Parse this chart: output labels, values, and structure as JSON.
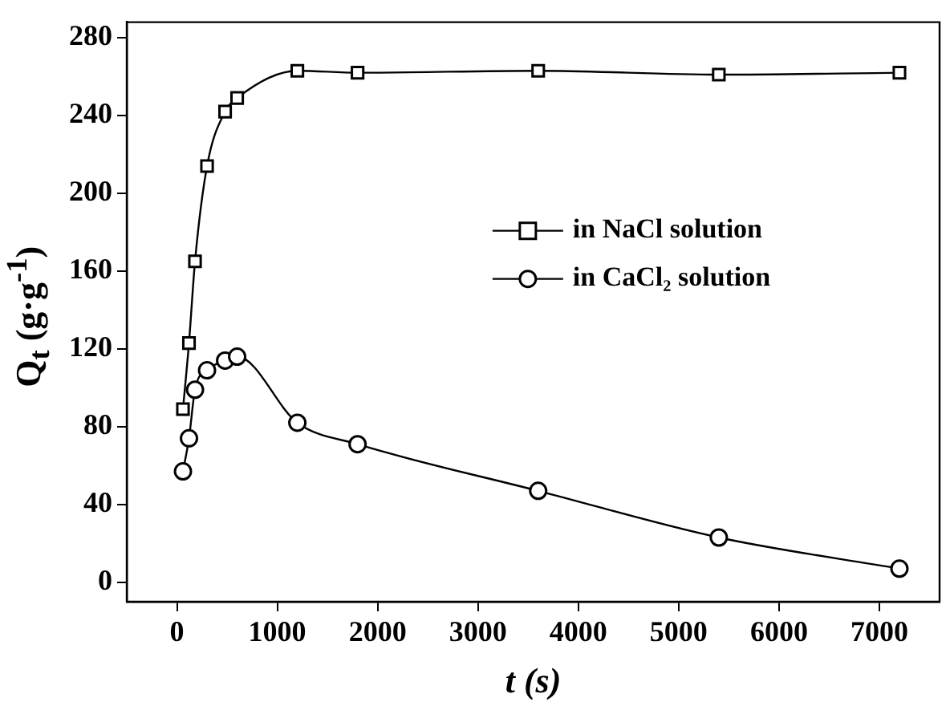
{
  "chart_data": {
    "type": "line",
    "xlabel": "t (s)",
    "ylabel": "Q$_{t}$ (g·g$^{-1}$)",
    "x": [
      60,
      120,
      180,
      300,
      480,
      600,
      1200,
      1800,
      3600,
      5400,
      7200
    ],
    "series": [
      {
        "name": "in NaCl solution",
        "color": "#000000",
        "marker": "square",
        "values": [
          89,
          123,
          165,
          214,
          242,
          249,
          263,
          262,
          263,
          261,
          262
        ]
      },
      {
        "name": "in CaCl₂ solution",
        "color": "#000000",
        "marker": "circle",
        "values": [
          57,
          74,
          99,
          109,
          114,
          116,
          82,
          71,
          47,
          23,
          7
        ]
      }
    ],
    "xlim": [
      -500,
      7600
    ],
    "xticks": [
      0,
      1000,
      2000,
      3000,
      4000,
      5000,
      6000,
      7000
    ],
    "ylim": [
      -10,
      288
    ],
    "yticks": [
      0,
      40,
      80,
      120,
      160,
      200,
      240,
      280
    ],
    "grid": false,
    "legend": "right",
    "line_style": "solid"
  }
}
